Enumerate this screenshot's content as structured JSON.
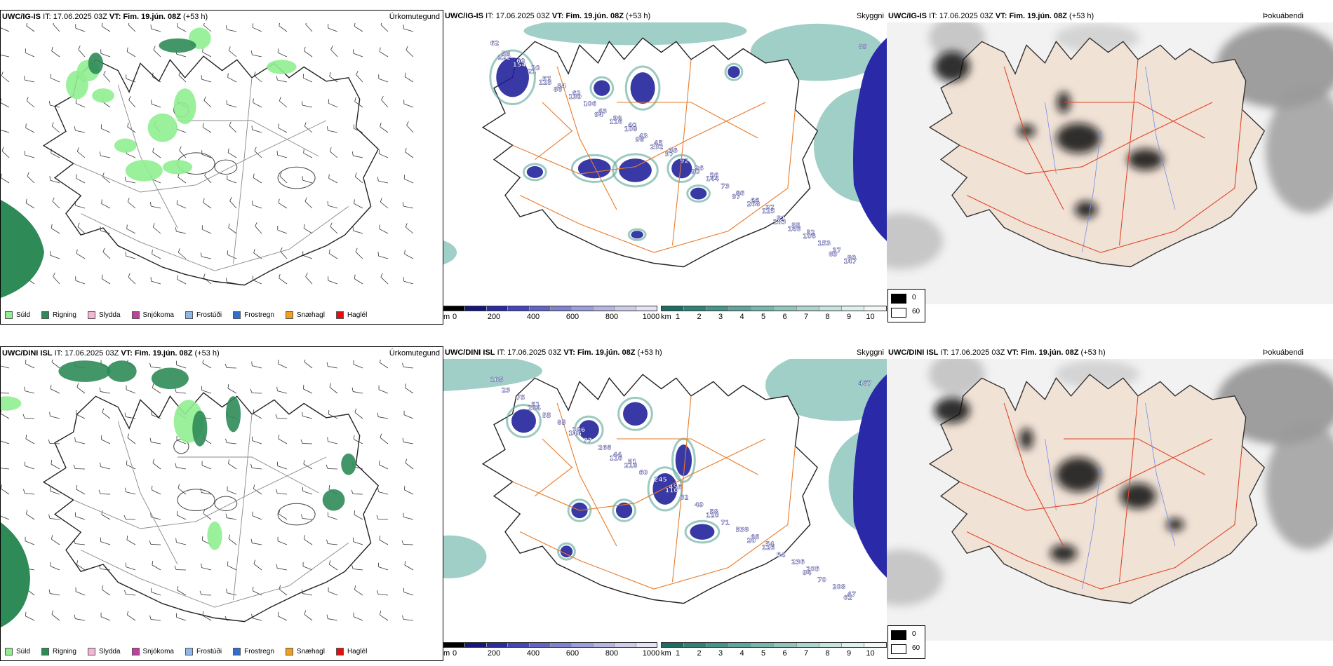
{
  "rows": [
    {
      "model": "UWC/IG-IS",
      "it_label": "IT:",
      "it_value": "17.06.2025 03Z",
      "vt_label": "VT:",
      "vt_value": "Fim. 19.jún. 08Z",
      "lead": "(+53 h)"
    },
    {
      "model": "UWC/DINI ISL",
      "it_label": "IT:",
      "it_value": "17.06.2025 03Z",
      "vt_label": "VT:",
      "vt_value": "Fim. 19.jún. 08Z",
      "lead": "(+53 h)"
    }
  ],
  "panels": {
    "precip_title": "Úrkomutegund",
    "cloud_title": "Skyggni",
    "fog_title": "Þokuábendi"
  },
  "precip_legend": [
    {
      "label": "Súld",
      "color": "#90ee90"
    },
    {
      "label": "Rigning",
      "color": "#2e8b57"
    },
    {
      "label": "Slydda",
      "color": "#f4b6d2"
    },
    {
      "label": "Snjókoma",
      "color": "#c040a0"
    },
    {
      "label": "Frostúði",
      "color": "#8fb8ea"
    },
    {
      "label": "Frostregn",
      "color": "#2f6fd0"
    },
    {
      "label": "Snæhagl",
      "color": "#f0a020"
    },
    {
      "label": "Haglél",
      "color": "#e01010"
    }
  ],
  "cloudbase_bar": {
    "unit": "m",
    "ticks": [
      "0",
      "200",
      "400",
      "600",
      "800",
      "1000"
    ],
    "colors": [
      "#000000",
      "#16167a",
      "#2b2ba0",
      "#4545b8",
      "#6363c4",
      "#8181cf",
      "#9d9dd9",
      "#b5b5e2",
      "#cdcdeb",
      "#e3e3f4"
    ]
  },
  "visibility_bar": {
    "unit": "km",
    "ticks": [
      "1",
      "2",
      "3",
      "4",
      "5",
      "6",
      "7",
      "8",
      "9",
      "10"
    ],
    "colors": [
      "#1d6e62",
      "#2f8275",
      "#45958a",
      "#5ea69b",
      "#78b6ac",
      "#92c6bd",
      "#add5cf",
      "#c6e3de",
      "#def0ed",
      "#f1f8f7"
    ]
  },
  "fog_legend": {
    "items": [
      {
        "label": "0",
        "color": "#000000"
      },
      {
        "label": "60",
        "color": "#ffffff"
      }
    ]
  },
  "cloud_labels_top": [
    "62",
    "40",
    "37",
    "20",
    "36",
    "52",
    "62",
    "56",
    "80",
    "98",
    "66",
    "60",
    "45",
    "55",
    "84",
    "96",
    "37",
    "43",
    "66",
    "58",
    "43",
    "51",
    "57",
    "92",
    "153",
    "106",
    "73",
    "89",
    "108",
    "125",
    "21",
    "97",
    "106",
    "139",
    "144",
    "147",
    "116",
    "268",
    "154",
    "202",
    "146",
    "86",
    "90",
    "89",
    "94",
    "97",
    "222",
    "98",
    "183",
    "125"
  ],
  "cloud_labels_bottom": [
    "105",
    "51",
    "54",
    "51",
    "456",
    "205",
    "106",
    "58",
    "47",
    "44",
    "66",
    "75",
    "245",
    "236",
    "85",
    "49",
    "208",
    "266",
    "538",
    "23",
    "60",
    "54",
    "55",
    "62",
    "70",
    "77",
    "71",
    "467",
    "218",
    "126",
    "164",
    "110",
    "94",
    "146",
    "120",
    "62",
    "116",
    "20"
  ]
}
